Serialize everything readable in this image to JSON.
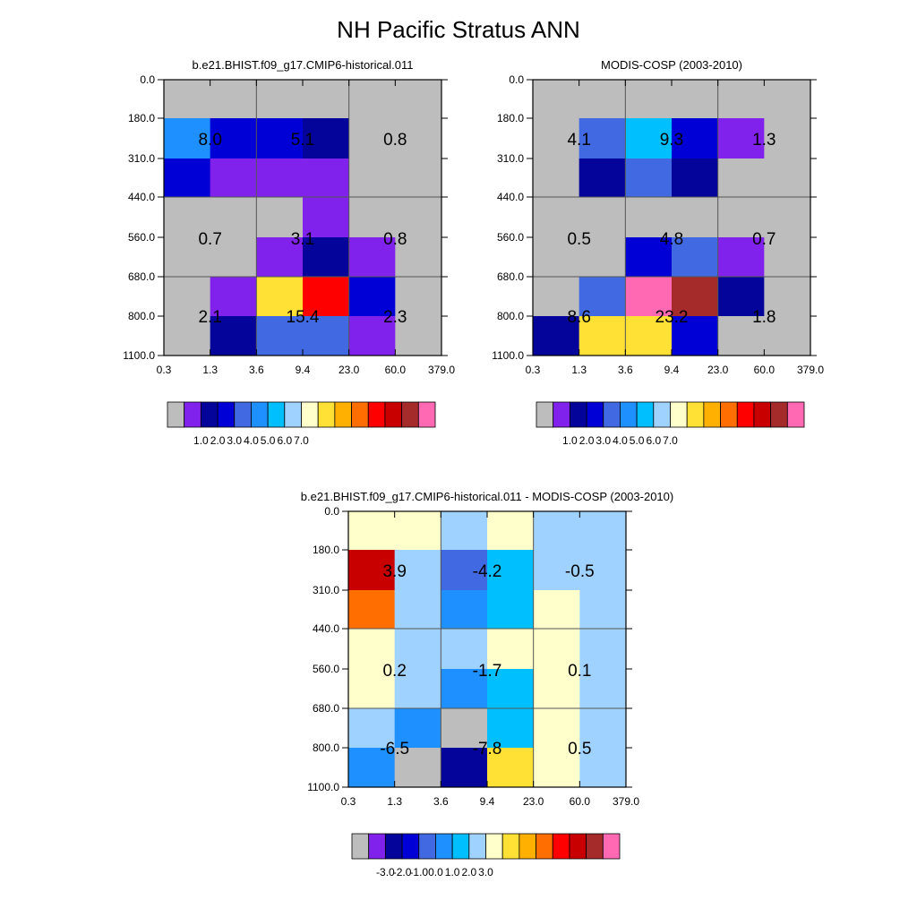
{
  "figure": {
    "title": "NH Pacific Stratus ANN",
    "x_ticks": [
      "0.3",
      "1.3",
      "3.6",
      "9.4",
      "23.0",
      "60.0",
      "379.0"
    ],
    "y_ticks": [
      "0.0",
      "180.0",
      "310.0",
      "440.0",
      "560.0",
      "680.0",
      "800.0",
      "1100.0"
    ]
  },
  "colormap": [
    "#bdbdbd",
    "#8122ec",
    "#04049b",
    "#0000d6",
    "#4169e1",
    "#1e90ff",
    "#00bfff",
    "#a0d2ff",
    "#ffffcc",
    "#ffe135",
    "#ffb000",
    "#ff6e00",
    "#ff0000",
    "#c80000",
    "#a52a2a",
    "#ff69b4"
  ],
  "chart_data": [
    {
      "type": "heatmap",
      "title": "b.e21.BHIST.f09_g17.CMIP6-historical.011",
      "grid": [
        [
          0,
          0,
          0,
          0,
          0,
          0
        ],
        [
          5,
          3,
          3,
          2,
          0,
          0
        ],
        [
          3,
          1,
          1,
          1,
          0,
          0
        ],
        [
          0,
          0,
          0,
          1,
          0,
          0
        ],
        [
          0,
          0,
          1,
          2,
          1,
          0
        ],
        [
          0,
          1,
          9,
          12,
          3,
          0
        ],
        [
          0,
          2,
          4,
          4,
          1,
          0
        ]
      ],
      "grid_note": "rows are pressure bins top to bottom, columns are optical depth bins left to right; values are colormap indices",
      "labels": [
        "8.0",
        "5.1",
        "0.8",
        "0.7",
        "3.1",
        "0.8",
        "2.1",
        "15.4",
        "2.3"
      ],
      "colorbar_labels": [
        "1.0",
        "2.0",
        "3.0",
        "4.0",
        "5.0",
        "6.0",
        "7.0"
      ]
    },
    {
      "type": "heatmap",
      "title": "MODIS-COSP (2003-2010)",
      "grid": [
        [
          0,
          0,
          0,
          0,
          0,
          0
        ],
        [
          0,
          4,
          6,
          3,
          1,
          0
        ],
        [
          0,
          2,
          4,
          2,
          0,
          0
        ],
        [
          0,
          0,
          0,
          0,
          0,
          0
        ],
        [
          0,
          0,
          3,
          4,
          1,
          0
        ],
        [
          0,
          4,
          15,
          14,
          2,
          0
        ],
        [
          2,
          9,
          9,
          3,
          0,
          0
        ]
      ],
      "labels": [
        "4.1",
        "9.3",
        "1.3",
        "0.5",
        "4.8",
        "0.7",
        "8.6",
        "23.2",
        "1.8"
      ],
      "colorbar_labels": [
        "1.0",
        "2.0",
        "3.0",
        "4.0",
        "5.0",
        "6.0",
        "7.0"
      ]
    },
    {
      "type": "heatmap",
      "title": "b.e21.BHIST.f09_g17.CMIP6-historical.011 - MODIS-COSP (2003-2010)",
      "grid": [
        [
          8,
          8,
          7,
          8,
          7,
          7
        ],
        [
          13,
          7,
          4,
          6,
          7,
          7
        ],
        [
          11,
          7,
          5,
          6,
          8,
          7
        ],
        [
          8,
          7,
          7,
          8,
          8,
          7
        ],
        [
          8,
          7,
          5,
          6,
          8,
          7
        ],
        [
          7,
          5,
          0,
          6,
          8,
          7
        ],
        [
          5,
          0,
          2,
          9,
          8,
          7
        ]
      ],
      "labels": [
        "3.9",
        "-4.2",
        "-0.5",
        "0.2",
        "-1.7",
        "0.1",
        "-6.5",
        "-7.8",
        "0.5"
      ],
      "colorbar_labels": [
        "-3.0",
        "-2.0",
        "-1.0",
        "0.0",
        "1.0",
        "2.0",
        "3.0"
      ]
    }
  ]
}
